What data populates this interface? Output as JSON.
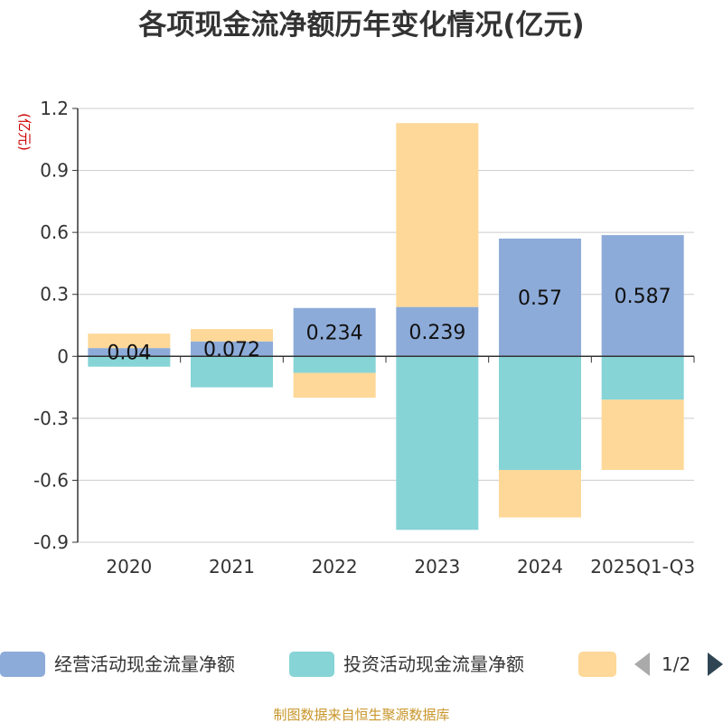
{
  "chart_data": {
    "type": "bar",
    "stacked": true,
    "title": "各项现金流净额历年变化情况(亿元)",
    "unit_label": "(亿元)",
    "categories": [
      "2020",
      "2021",
      "2022",
      "2023",
      "2024",
      "2025Q1-Q3"
    ],
    "ylim": [
      -0.9,
      1.2
    ],
    "yticks": [
      "1.2",
      "0.9",
      "0.6",
      "0.3",
      "0",
      "-0.3",
      "-0.6",
      "-0.9"
    ],
    "ytick_values": [
      1.2,
      0.9,
      0.6,
      0.3,
      0,
      -0.3,
      -0.6,
      -0.9
    ],
    "series": [
      {
        "name": "经营活动现金流量净额",
        "color": "#8dabd9",
        "values": [
          0.04,
          0.072,
          0.234,
          0.239,
          0.57,
          0.587
        ],
        "labels": [
          "0.04",
          "0.072",
          "0.234",
          "0.239",
          "0.57",
          "0.587"
        ]
      },
      {
        "name": "投资活动现金流量净额",
        "color": "#86d4d6",
        "values": [
          -0.05,
          -0.15,
          -0.08,
          -0.84,
          -0.55,
          -0.21
        ]
      },
      {
        "name": "",
        "color": "#fdd898",
        "values": [
          0.07,
          0.06,
          -0.12,
          0.89,
          -0.23,
          -0.34
        ]
      }
    ],
    "legend": {
      "items": [
        "经营活动现金流量净额",
        "投资活动现金流量净额",
        ""
      ],
      "page": "1/2",
      "placement": "bottom"
    },
    "source": "制图数据来自恒生聚源数据库"
  }
}
